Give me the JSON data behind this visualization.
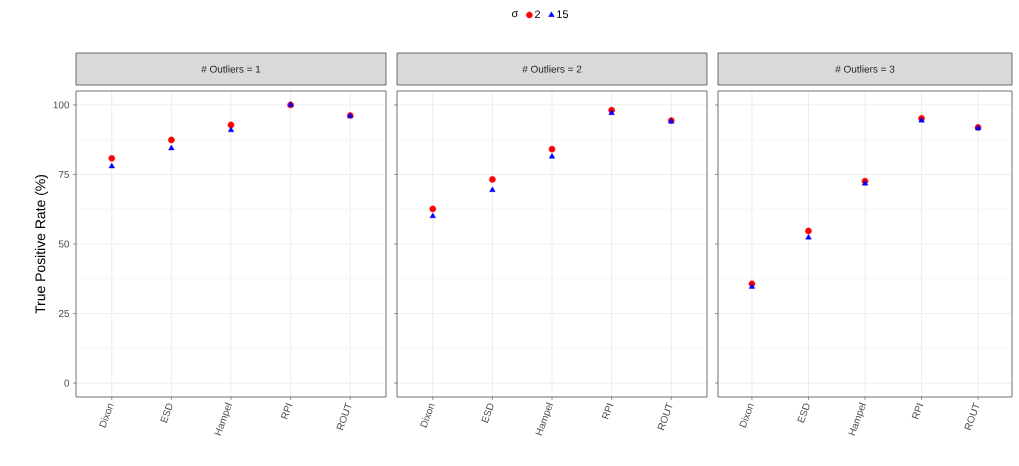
{
  "chart_data": [
    {
      "type": "scatter",
      "title": "# Outliers = 1",
      "ylabel": "True Positive Rate (%)",
      "legend_title": "σ",
      "legend": "top",
      "grid": true,
      "categories": [
        "Dixon",
        "ESD",
        "Hampel",
        "RPI",
        "ROUT"
      ],
      "ylim": [
        -5,
        105
      ],
      "yticks": [
        0,
        25,
        50,
        75,
        100
      ],
      "series": [
        {
          "name": "2",
          "color": "#ff0000",
          "marker": "circle",
          "values": [
            80.8,
            87.4,
            92.8,
            100,
            96.2
          ]
        },
        {
          "name": "15",
          "color": "#0000ff",
          "marker": "triangle",
          "values": [
            77.9,
            84.4,
            90.9,
            100,
            96.0
          ]
        }
      ]
    },
    {
      "type": "scatter",
      "title": "# Outliers = 2",
      "grid": true,
      "tick_labels": "x",
      "categories": [
        "Dixon",
        "ESD",
        "Hampel",
        "RPI",
        "ROUT"
      ],
      "ylim": [
        -5,
        105
      ],
      "yticks": [
        0,
        25,
        50,
        75,
        100
      ],
      "series": [
        {
          "color": "#ff0000",
          "marker": "circle",
          "values": [
            62.6,
            73.2,
            84.1,
            98.1,
            94.4
          ]
        },
        {
          "color": "#0000ff",
          "marker": "triangle",
          "values": [
            60.0,
            69.4,
            81.4,
            97.1,
            94.0
          ]
        }
      ]
    },
    {
      "type": "scatter",
      "title": "# Outliers = 3",
      "grid": true,
      "tick_labels": "x",
      "categories": [
        "Dixon",
        "ESD",
        "Hampel",
        "RPI",
        "ROUT"
      ],
      "ylim": [
        -5,
        105
      ],
      "yticks": [
        0,
        25,
        50,
        75,
        100
      ],
      "series": [
        {
          "color": "#ff0000",
          "marker": "circle",
          "values": [
            35.7,
            54.7,
            72.6,
            95.2,
            91.9
          ]
        },
        {
          "color": "#0000ff",
          "marker": "triangle",
          "values": [
            34.6,
            52.3,
            71.7,
            94.4,
            91.6
          ]
        }
      ]
    }
  ]
}
